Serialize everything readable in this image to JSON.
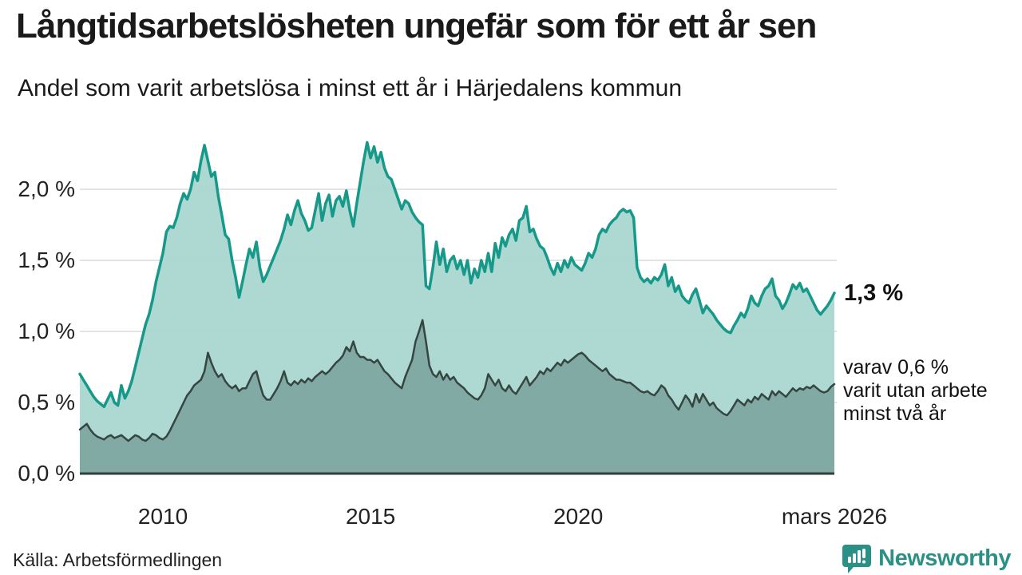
{
  "header": {
    "title": "Långtidsarbetslösheten ungefär som för ett år sen",
    "subtitle": "Andel som varit arbetslösa i minst ett år i Härjedalens kommun"
  },
  "chart_data": {
    "type": "area",
    "title": "Långtidsarbetslösheten ungefär som för ett år sen",
    "subtitle": "Andel som varit arbetslösa i minst ett år i Härjedalens kommun",
    "unit": "%",
    "frequency": "monthly",
    "x_start": "januari 2008",
    "x_end": "mars 2026",
    "ylim": [
      0,
      2.45
    ],
    "grid": true,
    "y_ticks": [
      {
        "label": "0,0 %",
        "value": 0
      },
      {
        "label": "0,5 %",
        "value": 0.5
      },
      {
        "label": "1,0 %",
        "value": 1.0
      },
      {
        "label": "1,5 %",
        "value": 1.5
      },
      {
        "label": "2,0 %",
        "value": 2.0
      }
    ],
    "x_ticks": [
      {
        "label": "2010",
        "month_index": 24
      },
      {
        "label": "2015",
        "month_index": 84
      },
      {
        "label": "2020",
        "month_index": 144
      },
      {
        "label": "mars 2026",
        "month_index": 218
      }
    ],
    "colors": {
      "line_total": "#17998a",
      "fill_total": "#abd7d1",
      "line_two_years": "#35453f",
      "fill_two_years": "#7fa8a1",
      "gridline": "#e2e4e7",
      "baseline": "#333f3c"
    },
    "series": [
      {
        "name": "Andel arbetslösa minst ett år",
        "end_value": "1,3 %",
        "values": [
          0.7,
          0.66,
          0.62,
          0.58,
          0.54,
          0.51,
          0.49,
          0.47,
          0.52,
          0.57,
          0.5,
          0.48,
          0.62,
          0.53,
          0.58,
          0.65,
          0.75,
          0.85,
          0.95,
          1.05,
          1.12,
          1.22,
          1.35,
          1.45,
          1.55,
          1.7,
          1.74,
          1.73,
          1.8,
          1.9,
          1.97,
          1.93,
          2.0,
          2.12,
          2.06,
          2.2,
          2.31,
          2.2,
          2.09,
          2.12,
          1.95,
          1.82,
          1.68,
          1.65,
          1.5,
          1.38,
          1.24,
          1.35,
          1.47,
          1.58,
          1.52,
          1.63,
          1.45,
          1.35,
          1.4,
          1.46,
          1.52,
          1.58,
          1.64,
          1.72,
          1.82,
          1.75,
          1.85,
          1.92,
          1.83,
          1.78,
          1.71,
          1.73,
          1.85,
          1.97,
          1.78,
          1.9,
          1.96,
          1.81,
          1.92,
          1.95,
          1.88,
          1.99,
          1.85,
          1.74,
          1.9,
          2.05,
          2.2,
          2.33,
          2.22,
          2.3,
          2.19,
          2.26,
          2.15,
          2.09,
          2.07,
          2.0,
          1.93,
          1.86,
          1.92,
          1.9,
          1.84,
          1.8,
          1.77,
          1.75,
          1.32,
          1.3,
          1.45,
          1.63,
          1.47,
          1.58,
          1.42,
          1.5,
          1.53,
          1.44,
          1.5,
          1.4,
          1.5,
          1.34,
          1.44,
          1.38,
          1.5,
          1.42,
          1.55,
          1.42,
          1.62,
          1.52,
          1.66,
          1.6,
          1.68,
          1.72,
          1.64,
          1.78,
          1.8,
          1.88,
          1.7,
          1.72,
          1.65,
          1.6,
          1.58,
          1.52,
          1.45,
          1.4,
          1.48,
          1.42,
          1.5,
          1.45,
          1.52,
          1.47,
          1.45,
          1.43,
          1.48,
          1.55,
          1.52,
          1.58,
          1.68,
          1.72,
          1.7,
          1.75,
          1.78,
          1.8,
          1.84,
          1.86,
          1.84,
          1.85,
          1.8,
          1.45,
          1.38,
          1.35,
          1.37,
          1.34,
          1.38,
          1.36,
          1.4,
          1.47,
          1.32,
          1.38,
          1.28,
          1.32,
          1.25,
          1.22,
          1.2,
          1.26,
          1.3,
          1.22,
          1.13,
          1.18,
          1.15,
          1.12,
          1.08,
          1.05,
          1.02,
          1.0,
          0.99,
          1.04,
          1.08,
          1.13,
          1.1,
          1.16,
          1.25,
          1.2,
          1.18,
          1.25,
          1.3,
          1.32,
          1.37,
          1.25,
          1.22,
          1.16,
          1.2,
          1.26,
          1.33,
          1.3,
          1.34,
          1.28,
          1.3,
          1.25,
          1.2,
          1.15,
          1.12,
          1.15,
          1.18,
          1.22,
          1.27
        ]
      },
      {
        "name": "Andel arbetslösa minst två år",
        "end_value": "0,6 %",
        "values": [
          0.31,
          0.33,
          0.35,
          0.31,
          0.28,
          0.26,
          0.25,
          0.24,
          0.26,
          0.27,
          0.25,
          0.26,
          0.27,
          0.25,
          0.23,
          0.25,
          0.27,
          0.26,
          0.24,
          0.23,
          0.25,
          0.28,
          0.27,
          0.25,
          0.24,
          0.26,
          0.3,
          0.35,
          0.4,
          0.45,
          0.5,
          0.55,
          0.58,
          0.62,
          0.64,
          0.66,
          0.72,
          0.85,
          0.78,
          0.72,
          0.68,
          0.7,
          0.65,
          0.62,
          0.6,
          0.62,
          0.58,
          0.6,
          0.6,
          0.65,
          0.7,
          0.72,
          0.63,
          0.55,
          0.52,
          0.52,
          0.56,
          0.6,
          0.65,
          0.72,
          0.64,
          0.62,
          0.65,
          0.63,
          0.66,
          0.64,
          0.67,
          0.65,
          0.68,
          0.7,
          0.72,
          0.7,
          0.72,
          0.75,
          0.78,
          0.8,
          0.83,
          0.89,
          0.86,
          0.93,
          0.85,
          0.82,
          0.82,
          0.8,
          0.8,
          0.78,
          0.8,
          0.76,
          0.72,
          0.7,
          0.67,
          0.64,
          0.62,
          0.6,
          0.68,
          0.74,
          0.8,
          0.93,
          1.0,
          1.08,
          0.93,
          0.76,
          0.7,
          0.68,
          0.72,
          0.66,
          0.7,
          0.66,
          0.68,
          0.64,
          0.62,
          0.6,
          0.57,
          0.55,
          0.53,
          0.52,
          0.55,
          0.6,
          0.7,
          0.66,
          0.62,
          0.66,
          0.6,
          0.58,
          0.62,
          0.58,
          0.56,
          0.6,
          0.64,
          0.68,
          0.62,
          0.65,
          0.68,
          0.72,
          0.7,
          0.74,
          0.72,
          0.75,
          0.78,
          0.76,
          0.8,
          0.78,
          0.8,
          0.82,
          0.84,
          0.85,
          0.83,
          0.8,
          0.78,
          0.76,
          0.74,
          0.72,
          0.74,
          0.7,
          0.68,
          0.66,
          0.66,
          0.65,
          0.64,
          0.64,
          0.62,
          0.6,
          0.58,
          0.57,
          0.58,
          0.56,
          0.55,
          0.58,
          0.62,
          0.6,
          0.55,
          0.52,
          0.48,
          0.45,
          0.5,
          0.55,
          0.52,
          0.47,
          0.56,
          0.5,
          0.56,
          0.52,
          0.48,
          0.5,
          0.46,
          0.44,
          0.42,
          0.41,
          0.44,
          0.48,
          0.52,
          0.5,
          0.48,
          0.52,
          0.5,
          0.54,
          0.52,
          0.56,
          0.54,
          0.52,
          0.58,
          0.55,
          0.58,
          0.56,
          0.54,
          0.57,
          0.6,
          0.58,
          0.6,
          0.59,
          0.61,
          0.6,
          0.62,
          0.6,
          0.58,
          0.57,
          0.58,
          0.61,
          0.63
        ]
      }
    ],
    "annotations": {
      "end_value_label": "1,3 %",
      "sub_label_lines": [
        "varav 0,6 %",
        "varit utan arbete",
        "minst två år"
      ]
    }
  },
  "footer": {
    "source": "Källa: Arbetsförmedlingen",
    "brand": "Newsworthy"
  }
}
